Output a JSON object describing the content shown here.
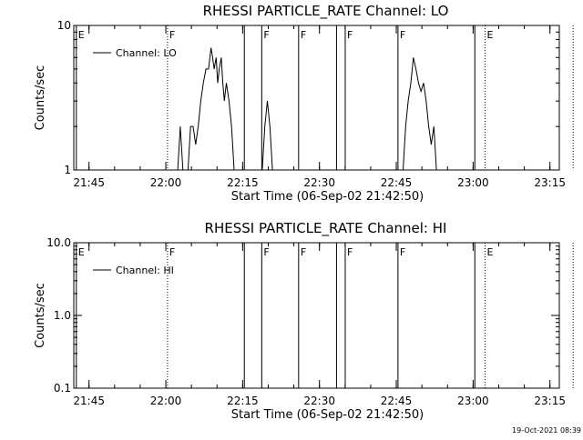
{
  "footer": {
    "timestamp": "19-Oct-2021 08:39"
  },
  "chart_data": [
    {
      "type": "line",
      "title": "RHESSI PARTICLE_RATE Channel: LO",
      "xlabel": "Start Time (06-Sep-02 21:42:50)",
      "ylabel": "Counts/sec",
      "yscale": "log",
      "ylim": [
        1,
        10
      ],
      "yticks": [
        1,
        10
      ],
      "ytick_labels": [
        "1",
        "10"
      ],
      "xlim_min": [
        -0.8,
        94
      ],
      "xticks": [
        2.17,
        17.17,
        32.17,
        47.17,
        62.17,
        77.17,
        92.17
      ],
      "xtick_labels": [
        "21:45",
        "22:00",
        "22:15",
        "22:30",
        "22:45",
        "23:00",
        "23:15"
      ],
      "legend": {
        "label": "Channel: LO",
        "position": "top-left"
      },
      "flag_lines": [
        {
          "x": -0.3,
          "label": "E",
          "style": "solid"
        },
        {
          "x": 17.5,
          "label": "F",
          "style": "dotted"
        },
        {
          "x": 32.5,
          "label": "",
          "style": "solid"
        },
        {
          "x": 35.9,
          "label": "F",
          "style": "solid"
        },
        {
          "x": 43.1,
          "label": "F",
          "style": "solid"
        },
        {
          "x": 50.5,
          "label": "",
          "style": "solid"
        },
        {
          "x": 52.2,
          "label": "F",
          "style": "solid"
        },
        {
          "x": 62.5,
          "label": "F",
          "style": "solid"
        },
        {
          "x": 77.5,
          "label": "",
          "style": "solid"
        },
        {
          "x": 79.5,
          "label": "E",
          "style": "dotted"
        },
        {
          "x": 96.7,
          "label": "",
          "style": "dotted"
        }
      ],
      "series": [
        {
          "name": "Channel: LO",
          "segments": [
            [
              [
                19.5,
                1
              ],
              [
                20.0,
                2
              ],
              [
                20.5,
                1
              ]
            ],
            [
              [
                21.5,
                1
              ],
              [
                22.0,
                2
              ],
              [
                22.5,
                2
              ],
              [
                23.0,
                1.5
              ],
              [
                23.5,
                2
              ],
              [
                24.0,
                3
              ],
              [
                24.5,
                4
              ],
              [
                25.0,
                5
              ],
              [
                25.5,
                5
              ],
              [
                26.0,
                7
              ],
              [
                26.3,
                6
              ],
              [
                26.6,
                5
              ],
              [
                27.0,
                6
              ],
              [
                27.3,
                4
              ],
              [
                27.6,
                5
              ],
              [
                28.0,
                6
              ],
              [
                28.3,
                4
              ],
              [
                28.6,
                3
              ],
              [
                29.0,
                4
              ],
              [
                29.5,
                3
              ],
              [
                30.0,
                2
              ],
              [
                30.5,
                1
              ]
            ],
            [
              [
                36.0,
                1
              ],
              [
                36.5,
                2
              ],
              [
                37.0,
                3
              ],
              [
                37.5,
                2
              ],
              [
                38.0,
                1
              ]
            ],
            [
              [
                63.5,
                1
              ],
              [
                64.0,
                2
              ],
              [
                64.5,
                3
              ],
              [
                65.0,
                4
              ],
              [
                65.5,
                6
              ],
              [
                66.0,
                5
              ],
              [
                66.5,
                4
              ],
              [
                67.0,
                3.5
              ],
              [
                67.5,
                4
              ],
              [
                68.0,
                3
              ],
              [
                68.5,
                2
              ],
              [
                69.0,
                1.5
              ],
              [
                69.5,
                2
              ],
              [
                70.0,
                1
              ]
            ]
          ]
        }
      ]
    },
    {
      "type": "line",
      "title": "RHESSI PARTICLE_RATE Channel: HI",
      "xlabel": "Start Time (06-Sep-02 21:42:50)",
      "ylabel": "Counts/sec",
      "yscale": "log",
      "ylim": [
        0.1,
        10
      ],
      "yticks": [
        0.1,
        1,
        10
      ],
      "ytick_labels": [
        "0.1",
        "1.0",
        "10.0"
      ],
      "xlim_min": [
        -0.8,
        94
      ],
      "xticks": [
        2.17,
        17.17,
        32.17,
        47.17,
        62.17,
        77.17,
        92.17
      ],
      "xtick_labels": [
        "21:45",
        "22:00",
        "22:15",
        "22:30",
        "22:45",
        "23:00",
        "23:15"
      ],
      "legend": {
        "label": "Channel: HI",
        "position": "top-left"
      },
      "flag_lines": [
        {
          "x": -0.3,
          "label": "E",
          "style": "solid"
        },
        {
          "x": 17.5,
          "label": "F",
          "style": "dotted"
        },
        {
          "x": 32.5,
          "label": "",
          "style": "solid"
        },
        {
          "x": 35.9,
          "label": "F",
          "style": "solid"
        },
        {
          "x": 43.1,
          "label": "F",
          "style": "solid"
        },
        {
          "x": 50.5,
          "label": "",
          "style": "solid"
        },
        {
          "x": 52.2,
          "label": "F",
          "style": "solid"
        },
        {
          "x": 62.5,
          "label": "F",
          "style": "solid"
        },
        {
          "x": 77.5,
          "label": "",
          "style": "solid"
        },
        {
          "x": 79.5,
          "label": "E",
          "style": "dotted"
        },
        {
          "x": 96.7,
          "label": "",
          "style": "dotted"
        }
      ],
      "series": [
        {
          "name": "Channel: HI",
          "segments": []
        }
      ]
    }
  ]
}
